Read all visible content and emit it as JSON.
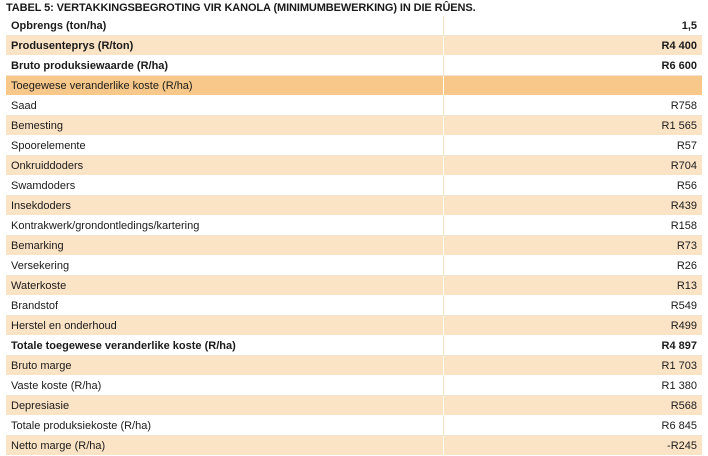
{
  "title": "TABEL 5: VERTAKKINGSBEGROTING VIR KANOLA (MINIMUMBEWERKING) IN DIE RÛENS.",
  "rows": [
    {
      "label": "Opbrengs (ton/ha)",
      "value": "1,5"
    },
    {
      "label": "Produsenteprys (R/ton)",
      "value": "R4 400"
    },
    {
      "label": "Bruto produksiewaarde (R/ha)",
      "value": "R6 600"
    },
    {
      "label": "Toegewese veranderlike koste (R/ha)",
      "value": ""
    },
    {
      "label": "Saad",
      "value": "R758"
    },
    {
      "label": "Bemesting",
      "value": "R1 565"
    },
    {
      "label": "Spoorelemente",
      "value": "R57"
    },
    {
      "label": "Onkruiddoders",
      "value": "R704"
    },
    {
      "label": "Swamdoders",
      "value": "R56"
    },
    {
      "label": "Insekdoders",
      "value": "R439"
    },
    {
      "label": "Kontrakwerk/grondontledings/kartering",
      "value": "R158"
    },
    {
      "label": "Bemarking",
      "value": "R73"
    },
    {
      "label": "Versekering",
      "value": "R26"
    },
    {
      "label": "Waterkoste",
      "value": "R13"
    },
    {
      "label": "Brandstof",
      "value": "R549"
    },
    {
      "label": "Herstel en onderhoud",
      "value": "R499"
    },
    {
      "label": "Totale toegewese veranderlike koste (R/ha)",
      "value": "R4 897"
    },
    {
      "label": "Bruto marge",
      "value": "R1 703"
    },
    {
      "label": "Vaste koste (R/ha)",
      "value": "R1 380"
    },
    {
      "label": "Depresiasie",
      "value": "R568"
    },
    {
      "label": "Totale produksiekoste (R/ha)",
      "value": "R6 845"
    },
    {
      "label": "Netto marge (R/ha)",
      "value": "-R245"
    }
  ],
  "colors": {
    "header_row": "#f7c889",
    "light_row": "#fbe3c5",
    "white_row": "#ffffff"
  }
}
